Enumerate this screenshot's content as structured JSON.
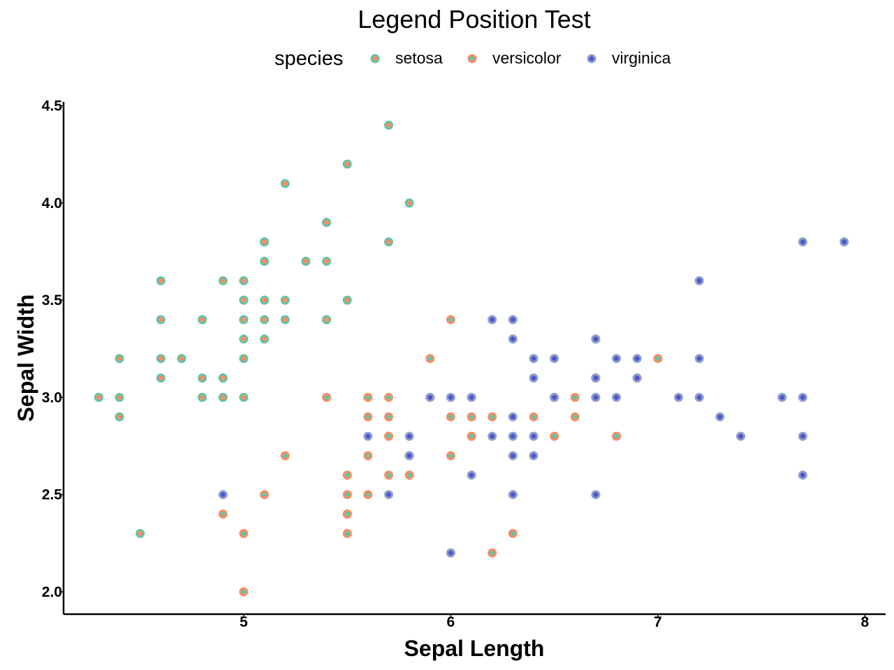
{
  "chart_data": {
    "type": "scatter",
    "title": "Legend Position Test",
    "xlabel": "Sepal Length",
    "ylabel": "Sepal Width",
    "xlim": [
      4.13,
      8.1
    ],
    "ylim": [
      1.885,
      4.52
    ],
    "x_ticks": [
      {
        "value": 5,
        "label": "5"
      },
      {
        "value": 6,
        "label": "6"
      },
      {
        "value": 7,
        "label": "7"
      },
      {
        "value": 8,
        "label": "8"
      }
    ],
    "y_ticks": [
      {
        "value": 2.0,
        "label": "2.0"
      },
      {
        "value": 2.5,
        "label": "2.5"
      },
      {
        "value": 3.0,
        "label": "3.0"
      },
      {
        "value": 3.5,
        "label": "3.5"
      },
      {
        "value": 4.0,
        "label": "4.0"
      },
      {
        "value": 4.5,
        "label": "4.5"
      }
    ],
    "grid": false,
    "legend": {
      "title": "species",
      "position": "top"
    },
    "series": [
      {
        "name": "setosa",
        "stroke": "#66c2a5",
        "fill": "#fc8d62",
        "points": [
          [
            5.1,
            3.5
          ],
          [
            4.9,
            3.0
          ],
          [
            4.7,
            3.2
          ],
          [
            4.6,
            3.1
          ],
          [
            5.0,
            3.6
          ],
          [
            5.4,
            3.9
          ],
          [
            4.6,
            3.4
          ],
          [
            5.0,
            3.4
          ],
          [
            4.4,
            2.9
          ],
          [
            4.9,
            3.1
          ],
          [
            5.4,
            3.7
          ],
          [
            4.8,
            3.4
          ],
          [
            4.8,
            3.0
          ],
          [
            4.3,
            3.0
          ],
          [
            5.8,
            4.0
          ],
          [
            5.7,
            4.4
          ],
          [
            5.4,
            3.9
          ],
          [
            5.1,
            3.5
          ],
          [
            5.7,
            3.8
          ],
          [
            5.1,
            3.8
          ],
          [
            5.4,
            3.4
          ],
          [
            5.1,
            3.7
          ],
          [
            4.6,
            3.6
          ],
          [
            5.1,
            3.3
          ],
          [
            4.8,
            3.4
          ],
          [
            5.0,
            3.0
          ],
          [
            5.0,
            3.4
          ],
          [
            5.2,
            3.5
          ],
          [
            5.2,
            3.4
          ],
          [
            4.7,
            3.2
          ],
          [
            4.8,
            3.1
          ],
          [
            5.4,
            3.4
          ],
          [
            5.2,
            4.1
          ],
          [
            5.5,
            4.2
          ],
          [
            4.9,
            3.1
          ],
          [
            5.0,
            3.2
          ],
          [
            5.5,
            3.5
          ],
          [
            4.9,
            3.6
          ],
          [
            4.4,
            3.0
          ],
          [
            5.1,
            3.4
          ],
          [
            5.0,
            3.5
          ],
          [
            4.5,
            2.3
          ],
          [
            4.4,
            3.2
          ],
          [
            5.0,
            3.5
          ],
          [
            5.1,
            3.8
          ],
          [
            4.8,
            3.0
          ],
          [
            5.1,
            3.8
          ],
          [
            4.6,
            3.2
          ],
          [
            5.3,
            3.7
          ],
          [
            5.0,
            3.3
          ]
        ]
      },
      {
        "name": "versicolor",
        "stroke": "#fc8d62",
        "fill": "#66c2a5",
        "points": [
          [
            7.0,
            3.2
          ],
          [
            6.4,
            3.2
          ],
          [
            6.9,
            3.1
          ],
          [
            5.5,
            2.3
          ],
          [
            6.5,
            2.8
          ],
          [
            5.7,
            2.8
          ],
          [
            6.3,
            3.3
          ],
          [
            4.9,
            2.4
          ],
          [
            6.6,
            2.9
          ],
          [
            5.2,
            2.7
          ],
          [
            5.0,
            2.0
          ],
          [
            5.9,
            3.0
          ],
          [
            6.0,
            2.2
          ],
          [
            6.1,
            2.9
          ],
          [
            5.6,
            2.9
          ],
          [
            6.7,
            3.1
          ],
          [
            5.6,
            3.0
          ],
          [
            5.8,
            2.7
          ],
          [
            6.2,
            2.2
          ],
          [
            5.6,
            2.5
          ],
          [
            5.9,
            3.2
          ],
          [
            6.1,
            2.8
          ],
          [
            6.3,
            2.5
          ],
          [
            6.1,
            2.8
          ],
          [
            6.4,
            2.9
          ],
          [
            6.6,
            3.0
          ],
          [
            6.8,
            2.8
          ],
          [
            6.7,
            3.0
          ],
          [
            6.0,
            2.9
          ],
          [
            5.7,
            2.6
          ],
          [
            5.5,
            2.4
          ],
          [
            5.5,
            2.4
          ],
          [
            5.8,
            2.7
          ],
          [
            6.0,
            2.7
          ],
          [
            5.4,
            3.0
          ],
          [
            6.0,
            3.4
          ],
          [
            6.7,
            3.1
          ],
          [
            6.3,
            2.3
          ],
          [
            5.6,
            3.0
          ],
          [
            5.5,
            2.5
          ],
          [
            5.5,
            2.6
          ],
          [
            6.1,
            3.0
          ],
          [
            5.8,
            2.6
          ],
          [
            5.0,
            2.3
          ],
          [
            5.6,
            2.7
          ],
          [
            5.7,
            3.0
          ],
          [
            5.7,
            2.9
          ],
          [
            6.2,
            2.9
          ],
          [
            5.1,
            2.5
          ],
          [
            5.7,
            2.8
          ]
        ]
      },
      {
        "name": "virginica",
        "stroke": "#8da0cb",
        "fill": "#5054d0",
        "points": [
          [
            6.3,
            3.3
          ],
          [
            5.8,
            2.7
          ],
          [
            7.1,
            3.0
          ],
          [
            6.3,
            2.9
          ],
          [
            6.5,
            3.0
          ],
          [
            7.6,
            3.0
          ],
          [
            4.9,
            2.5
          ],
          [
            7.3,
            2.9
          ],
          [
            6.7,
            2.5
          ],
          [
            7.2,
            3.6
          ],
          [
            6.5,
            3.2
          ],
          [
            6.4,
            2.7
          ],
          [
            6.8,
            3.0
          ],
          [
            5.7,
            2.5
          ],
          [
            5.8,
            2.8
          ],
          [
            6.4,
            3.2
          ],
          [
            6.5,
            3.0
          ],
          [
            7.7,
            3.8
          ],
          [
            7.7,
            2.6
          ],
          [
            6.0,
            2.2
          ],
          [
            6.9,
            3.2
          ],
          [
            5.6,
            2.8
          ],
          [
            7.7,
            2.8
          ],
          [
            6.3,
            2.7
          ],
          [
            6.7,
            3.3
          ],
          [
            7.2,
            3.2
          ],
          [
            6.2,
            2.8
          ],
          [
            6.1,
            3.0
          ],
          [
            6.4,
            2.8
          ],
          [
            7.2,
            3.0
          ],
          [
            7.4,
            2.8
          ],
          [
            7.9,
            3.8
          ],
          [
            6.4,
            2.8
          ],
          [
            6.3,
            2.8
          ],
          [
            6.1,
            2.6
          ],
          [
            7.7,
            3.0
          ],
          [
            6.3,
            3.4
          ],
          [
            6.4,
            3.1
          ],
          [
            6.0,
            3.0
          ],
          [
            6.9,
            3.1
          ],
          [
            6.7,
            3.1
          ],
          [
            6.9,
            3.1
          ],
          [
            5.8,
            2.7
          ],
          [
            6.8,
            3.2
          ],
          [
            6.7,
            3.3
          ],
          [
            6.7,
            3.0
          ],
          [
            6.3,
            2.5
          ],
          [
            6.5,
            3.0
          ],
          [
            6.2,
            3.4
          ],
          [
            5.9,
            3.0
          ]
        ]
      }
    ]
  }
}
